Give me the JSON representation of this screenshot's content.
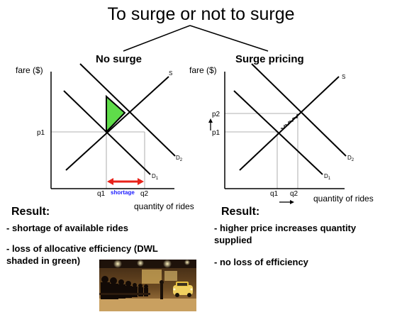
{
  "title": "To surge or not to surge",
  "no_surge": {
    "heading": "No surge",
    "y_axis_label": "fare ($)",
    "x_axis_label": "quantity of rides",
    "supply_label": "S",
    "demand_2_label": "D",
    "demand_2_sub": "2",
    "demand_1_label": "D",
    "demand_1_sub": "1",
    "price_label": "p1",
    "q1_label": "q1",
    "q2_label": "q2",
    "shortage_label": "shortage",
    "dwl_color": "#5fdc4a",
    "arrow_color": "#e8221a",
    "shortage_color": "#1a1aff"
  },
  "surge": {
    "heading": "Surge pricing",
    "y_axis_label": "fare ($)",
    "x_axis_label": "quantity of rides",
    "supply_label": "S",
    "demand_2_label": "D",
    "demand_2_sub": "2",
    "demand_1_label": "D",
    "demand_1_sub": "1",
    "p1_label": "p1",
    "p2_label": "p2",
    "q1_label": "q1",
    "q2_label": "q2"
  },
  "results": {
    "left_heading": "Result:",
    "left_line1": "- shortage of available rides",
    "left_line2a": "- loss of allocative efficiency (DWL",
    "left_line2b": "shaded in green)",
    "right_heading": "Result:",
    "right_line1a": "- higher price increases quantity",
    "right_line1b": "supplied",
    "right_line2": "- no loss of efficiency"
  },
  "photo": {
    "subject": "people-waiting-for-rides-photo"
  }
}
